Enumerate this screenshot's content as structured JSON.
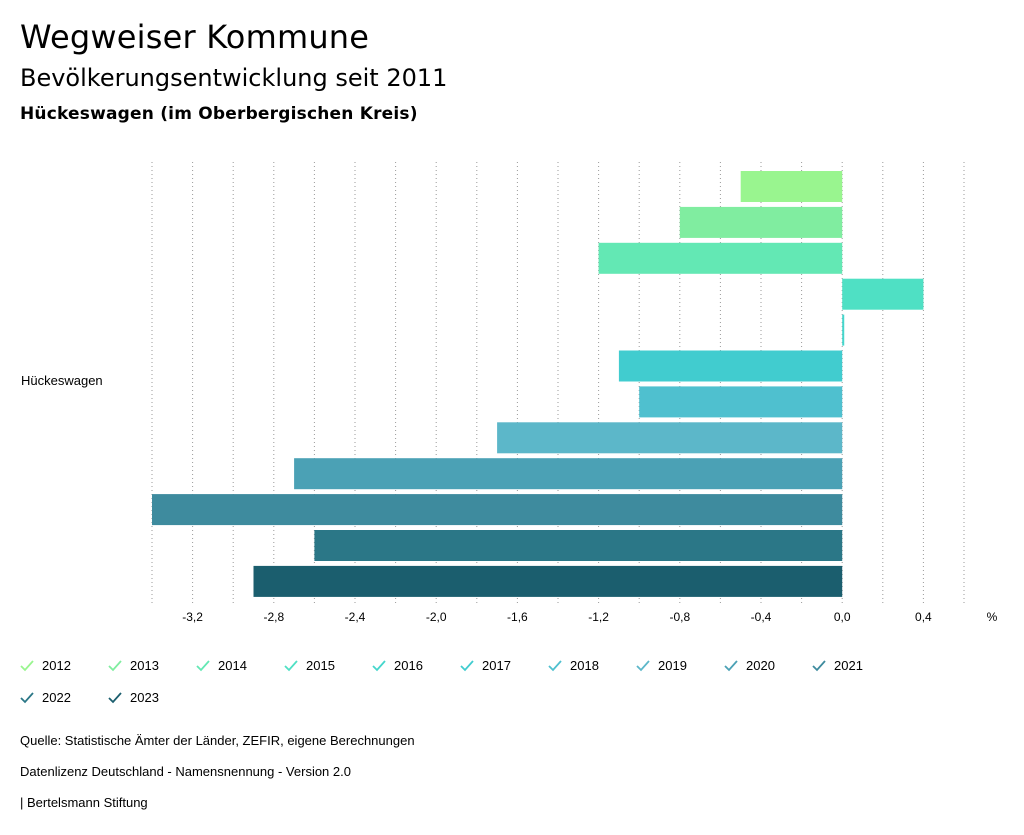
{
  "header": {
    "title": "Wegweiser Kommune",
    "subtitle": "Bevölkerungsentwicklung seit 2011",
    "region": "Hückeswagen (im Oberbergischen Kreis)"
  },
  "chart_data": {
    "type": "bar",
    "orientation": "horizontal",
    "category": "Hückeswagen",
    "unit_label": "%",
    "xlim": [
      -3.4,
      0.6
    ],
    "ticks": [
      -3.2,
      -2.8,
      -2.4,
      -2.0,
      -1.6,
      -1.2,
      -0.8,
      -0.4,
      0.0,
      0.4
    ],
    "tick_labels": [
      "-3,2",
      "-2,8",
      "-2,4",
      "-2,0",
      "-1,6",
      "-1,2",
      "-0,8",
      "-0,4",
      "0,0",
      "0,4"
    ],
    "grid": true,
    "series": [
      {
        "name": "2012",
        "value": -0.5,
        "color": "#99f58f"
      },
      {
        "name": "2013",
        "value": -0.8,
        "color": "#80eda0"
      },
      {
        "name": "2014",
        "value": -1.2,
        "color": "#63e8b4"
      },
      {
        "name": "2015",
        "value": 0.4,
        "color": "#4fe0c4"
      },
      {
        "name": "2016",
        "value": 0.01,
        "color": "#45d6cc"
      },
      {
        "name": "2017",
        "value": -1.1,
        "color": "#41cccf"
      },
      {
        "name": "2018",
        "value": -1.0,
        "color": "#4fc0cf"
      },
      {
        "name": "2019",
        "value": -1.7,
        "color": "#5cb7c9"
      },
      {
        "name": "2020",
        "value": -2.7,
        "color": "#4ba1b5"
      },
      {
        "name": "2021",
        "value": -3.4,
        "color": "#3e8b9e"
      },
      {
        "name": "2022",
        "value": -2.6,
        "color": "#2b7787"
      },
      {
        "name": "2023",
        "value": -2.9,
        "color": "#1b5e6e"
      }
    ]
  },
  "footer": {
    "source": "Quelle: Statistische Ämter der Länder, ZEFIR, eigene Berechnungen",
    "license": "Datenlizenz Deutschland - Namensnennung - Version 2.0",
    "publisher": "| Bertelsmann Stiftung"
  }
}
